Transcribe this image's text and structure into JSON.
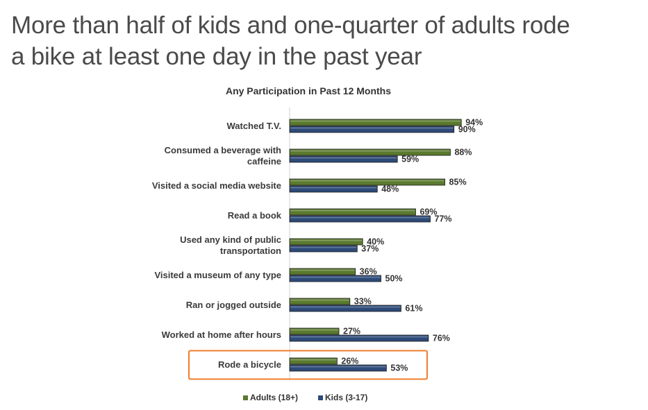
{
  "page": {
    "headline_line1": "More than half of kids and one-quarter of adults rode",
    "headline_line2": "a bike at least one day in the past year"
  },
  "chart_data": {
    "type": "bar",
    "orientation": "horizontal",
    "title": "Any Participation in Past 12 Months",
    "categories": [
      [
        "Watched T.V."
      ],
      [
        "Consumed a beverage with",
        "caffeine"
      ],
      [
        "Visited a social media website"
      ],
      [
        "Read a book"
      ],
      [
        "Used any kind of public",
        "transportation"
      ],
      [
        "Visited a museum of any type"
      ],
      [
        "Ran or jogged outside"
      ],
      [
        "Worked at home after hours"
      ],
      [
        "Rode a bicycle"
      ]
    ],
    "series": [
      {
        "name": "Adults (18+)",
        "color": "#5a7a2e",
        "values": [
          94,
          88,
          85,
          69,
          40,
          36,
          33,
          27,
          26
        ]
      },
      {
        "name": "Kids (3-17)",
        "color": "#2d4a78",
        "values": [
          90,
          59,
          48,
          77,
          37,
          50,
          61,
          76,
          53
        ]
      }
    ],
    "value_suffix": "%",
    "xlim": [
      0,
      100
    ],
    "grid": false,
    "legend_position": "bottom",
    "highlight": {
      "category_index": 8,
      "color": "#ef7d2d"
    }
  }
}
